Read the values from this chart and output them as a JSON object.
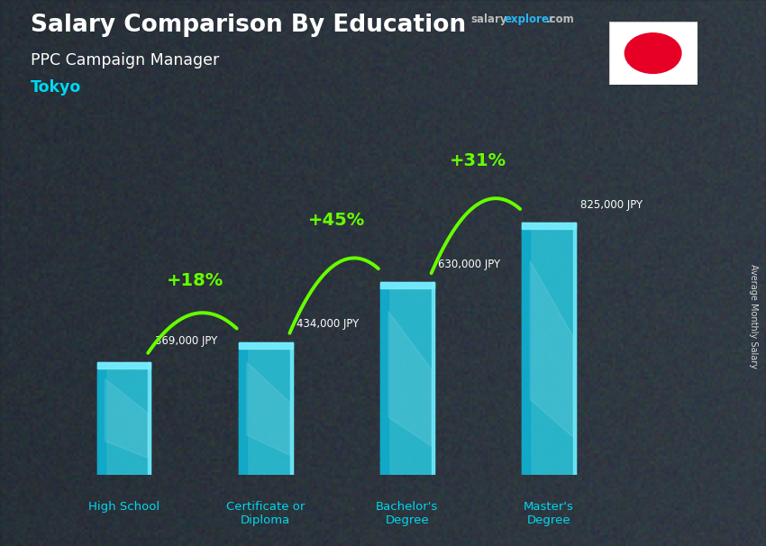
{
  "title_main": "Salary Comparison By Education",
  "subtitle": "PPC Campaign Manager",
  "city": "Tokyo",
  "categories": [
    "High School",
    "Certificate or\nDiploma",
    "Bachelor's\nDegree",
    "Master's\nDegree"
  ],
  "values": [
    369000,
    434000,
    630000,
    825000
  ],
  "labels": [
    "369,000 JPY",
    "434,000 JPY",
    "630,000 JPY",
    "825,000 JPY"
  ],
  "pct_labels": [
    "+18%",
    "+45%",
    "+31%"
  ],
  "bar_color_main": "#29d0e8",
  "bar_color_dark": "#0fa8c8",
  "bar_color_light": "#7aeeff",
  "bar_alpha": 0.82,
  "arrow_color": "#66ff00",
  "bg_color": "#3a4855",
  "text_color_white": "#ffffff",
  "text_color_cyan": "#00d8f0",
  "text_color_green": "#66ff00",
  "salary_color": "#aaaaaa",
  "explorer_color": "#29b6f6",
  "ylabel": "Average Monthly Salary",
  "ylim": [
    0,
    1000000
  ],
  "bar_width": 0.38,
  "fig_width": 8.5,
  "fig_height": 6.06,
  "dpi": 100,
  "bar_positions": [
    0,
    1,
    2,
    3
  ],
  "xlim": [
    -0.55,
    4.1
  ]
}
